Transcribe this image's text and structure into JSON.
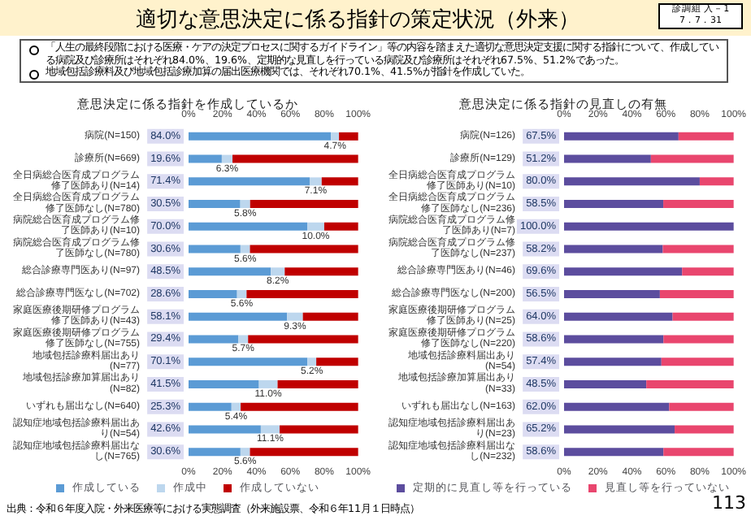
{
  "chart_data": [
    {
      "type": "other",
      "title": "適切な意思決定に係る指針の策定状況（外来）",
      "annotations": [
        "診調組 入－1",
        "7．7．31",
        "「人生の最終段階における医療・ケアの決定プロセスに関するガイドライン」等の内容を踏まえた適切な意思決定支援に関する指針について、作成している病院及び診療所はそれぞれ84.0%、19.6%、定期的な見直しを行っている病院及び診療所はそれぞれ67.5%、51.2%であった。",
        "地域包括診療料及び地域包括診療加算の届出医療機関では、それぞれ70.1%、41.5%が指針を作成していた。",
        "出典：令和６年度入院・外来医療等における実態調査（外来施設票、令和６年11月１日時点）",
        "113"
      ]
    },
    {
      "type": "bar",
      "orientation": "horizontal",
      "stacked": true,
      "legend": "bottom",
      "title": "意思決定に係る指針を作成しているか",
      "categories": [
        "病院(N=150)",
        "診療所(N=669)",
        "全日病総合医育成プログラム修了医師あり(N=14)",
        "全日病総合医育成プログラム修了医師なし(N=780)",
        "病院総合医育成プログラム修了医師あり(N=10)",
        "病院総合医育成プログラム修了医師なし(N=780)",
        "総合診療専門医あり(N=97)",
        "総合診療専門医なし(N=702)",
        "家庭医療後期研修プログラム修了医師あり(N=43)",
        "家庭医療後期研修プログラム修了医師なし(N=755)",
        "地域包括診療料届出あり(N=77)",
        "地域包括診療加算届出あり(N=82)",
        "いずれも届出なし(N=640)",
        "認知症地域包括診療料届出あり(N=54)",
        "認知症地域包括診療料届出なし(N=765)"
      ],
      "series": [
        {
          "name": "作成している",
          "color": "#5b9bd5",
          "values": [
            84.0,
            19.6,
            71.4,
            30.5,
            70.0,
            30.6,
            48.5,
            28.6,
            58.1,
            29.4,
            70.1,
            41.5,
            25.3,
            42.6,
            30.6
          ],
          "value_labels": [
            "84.0%",
            "19.6%",
            "71.4%",
            "30.5%",
            "70.0%",
            "30.6%",
            "48.5%",
            "28.6%",
            "58.1%",
            "29.4%",
            "70.1%",
            "41.5%",
            "25.3%",
            "42.6%",
            "30.6%"
          ]
        },
        {
          "name": "作成中",
          "color": "#bdd7ee",
          "values": [
            4.7,
            6.3,
            7.1,
            5.8,
            10.0,
            5.6,
            8.2,
            5.6,
            9.3,
            5.7,
            5.2,
            11.0,
            5.4,
            11.1,
            5.6
          ],
          "value_labels": [
            "4.7%",
            "6.3%",
            "7.1%",
            "5.8%",
            "10.0%",
            "5.6%",
            "8.2%",
            "5.6%",
            "9.3%",
            "5.7%",
            "5.2%",
            "11.0%",
            "5.4%",
            "11.1%",
            "5.6%"
          ]
        },
        {
          "name": "作成していない",
          "color": "#c00000",
          "values": [
            11.3,
            74.1,
            21.5,
            63.7,
            20.0,
            63.8,
            43.3,
            65.8,
            32.6,
            64.9,
            24.7,
            47.5,
            69.3,
            46.3,
            63.8
          ]
        }
      ],
      "xlim": [
        0,
        100
      ],
      "xticks": [
        {
          "value": 0,
          "label": "0%"
        },
        {
          "value": 20,
          "label": "20%"
        },
        {
          "value": 40,
          "label": "40%"
        },
        {
          "value": 60,
          "label": "60%"
        },
        {
          "value": 80,
          "label": "80%"
        },
        {
          "value": 100,
          "label": "100%"
        }
      ],
      "x2lim": [
        0,
        100
      ],
      "x2ticks": [
        {
          "value": 0,
          "label": "0%"
        },
        {
          "value": 20,
          "label": "20%"
        },
        {
          "value": 40,
          "label": "40%"
        },
        {
          "value": 60,
          "label": "60%"
        },
        {
          "value": 80,
          "label": "80%"
        },
        {
          "value": 100,
          "label": "100%"
        }
      ]
    },
    {
      "type": "bar",
      "orientation": "horizontal",
      "stacked": true,
      "legend": "bottom",
      "title": "意思決定に係る指針の見直しの有無",
      "categories": [
        "病院(N=126)",
        "診療所(N=129)",
        "全日病総合医育成プログラム修了医師あり(N=10)",
        "全日病総合医育成プログラム修了医師なし(N=236)",
        "病院総合医育成プログラム修了医師あり(N=7)",
        "病院総合医育成プログラム修了医師なし(N=237)",
        "総合診療専門医あり(N=46)",
        "総合診療専門医なし(N=200)",
        "家庭医療後期研修プログラム修了医師あり(N=25)",
        "家庭医療後期研修プログラム修了医師なし(N=220)",
        "地域包括診療料届出あり(N=54)",
        "地域包括診療加算届出あり(N=33)",
        "いずれも届出なし(N=163)",
        "認知症地域包括診療料届出あり(N=23)",
        "認知症地域包括診療料届出なし(N=232)"
      ],
      "series": [
        {
          "name": "定期的に見直し等を行っている",
          "color": "#5c4d9e",
          "values": [
            67.5,
            51.2,
            80.0,
            58.5,
            100.0,
            58.2,
            69.6,
            56.5,
            64.0,
            58.6,
            57.4,
            48.5,
            62.0,
            65.2,
            58.6
          ],
          "value_labels": [
            "67.5%",
            "51.2%",
            "80.0%",
            "58.5%",
            "100.0%",
            "58.2%",
            "69.6%",
            "56.5%",
            "64.0%",
            "58.6%",
            "57.4%",
            "48.5%",
            "62.0%",
            "65.2%",
            "58.6%"
          ]
        },
        {
          "name": "見直し等を行っていない",
          "color": "#e9466e",
          "values": [
            32.5,
            48.8,
            20.0,
            41.5,
            0.0,
            41.8,
            30.4,
            43.5,
            36.0,
            41.4,
            42.6,
            51.5,
            38.0,
            34.8,
            41.4
          ]
        }
      ],
      "xlim": [
        0,
        100
      ],
      "xticks": [
        {
          "value": 0,
          "label": "0%"
        },
        {
          "value": 20,
          "label": "20%"
        },
        {
          "value": 40,
          "label": "40%"
        },
        {
          "value": 60,
          "label": "60%"
        },
        {
          "value": 80,
          "label": "80%"
        },
        {
          "value": 100,
          "label": "100%"
        }
      ],
      "x2lim": [
        0,
        100
      ],
      "x2ticks": [
        {
          "value": 0,
          "label": "0%"
        },
        {
          "value": 20,
          "label": "20%"
        },
        {
          "value": 40,
          "label": "40%"
        },
        {
          "value": 60,
          "label": "60%"
        },
        {
          "value": 80,
          "label": "80%"
        },
        {
          "value": 100,
          "label": "100%"
        }
      ]
    }
  ]
}
